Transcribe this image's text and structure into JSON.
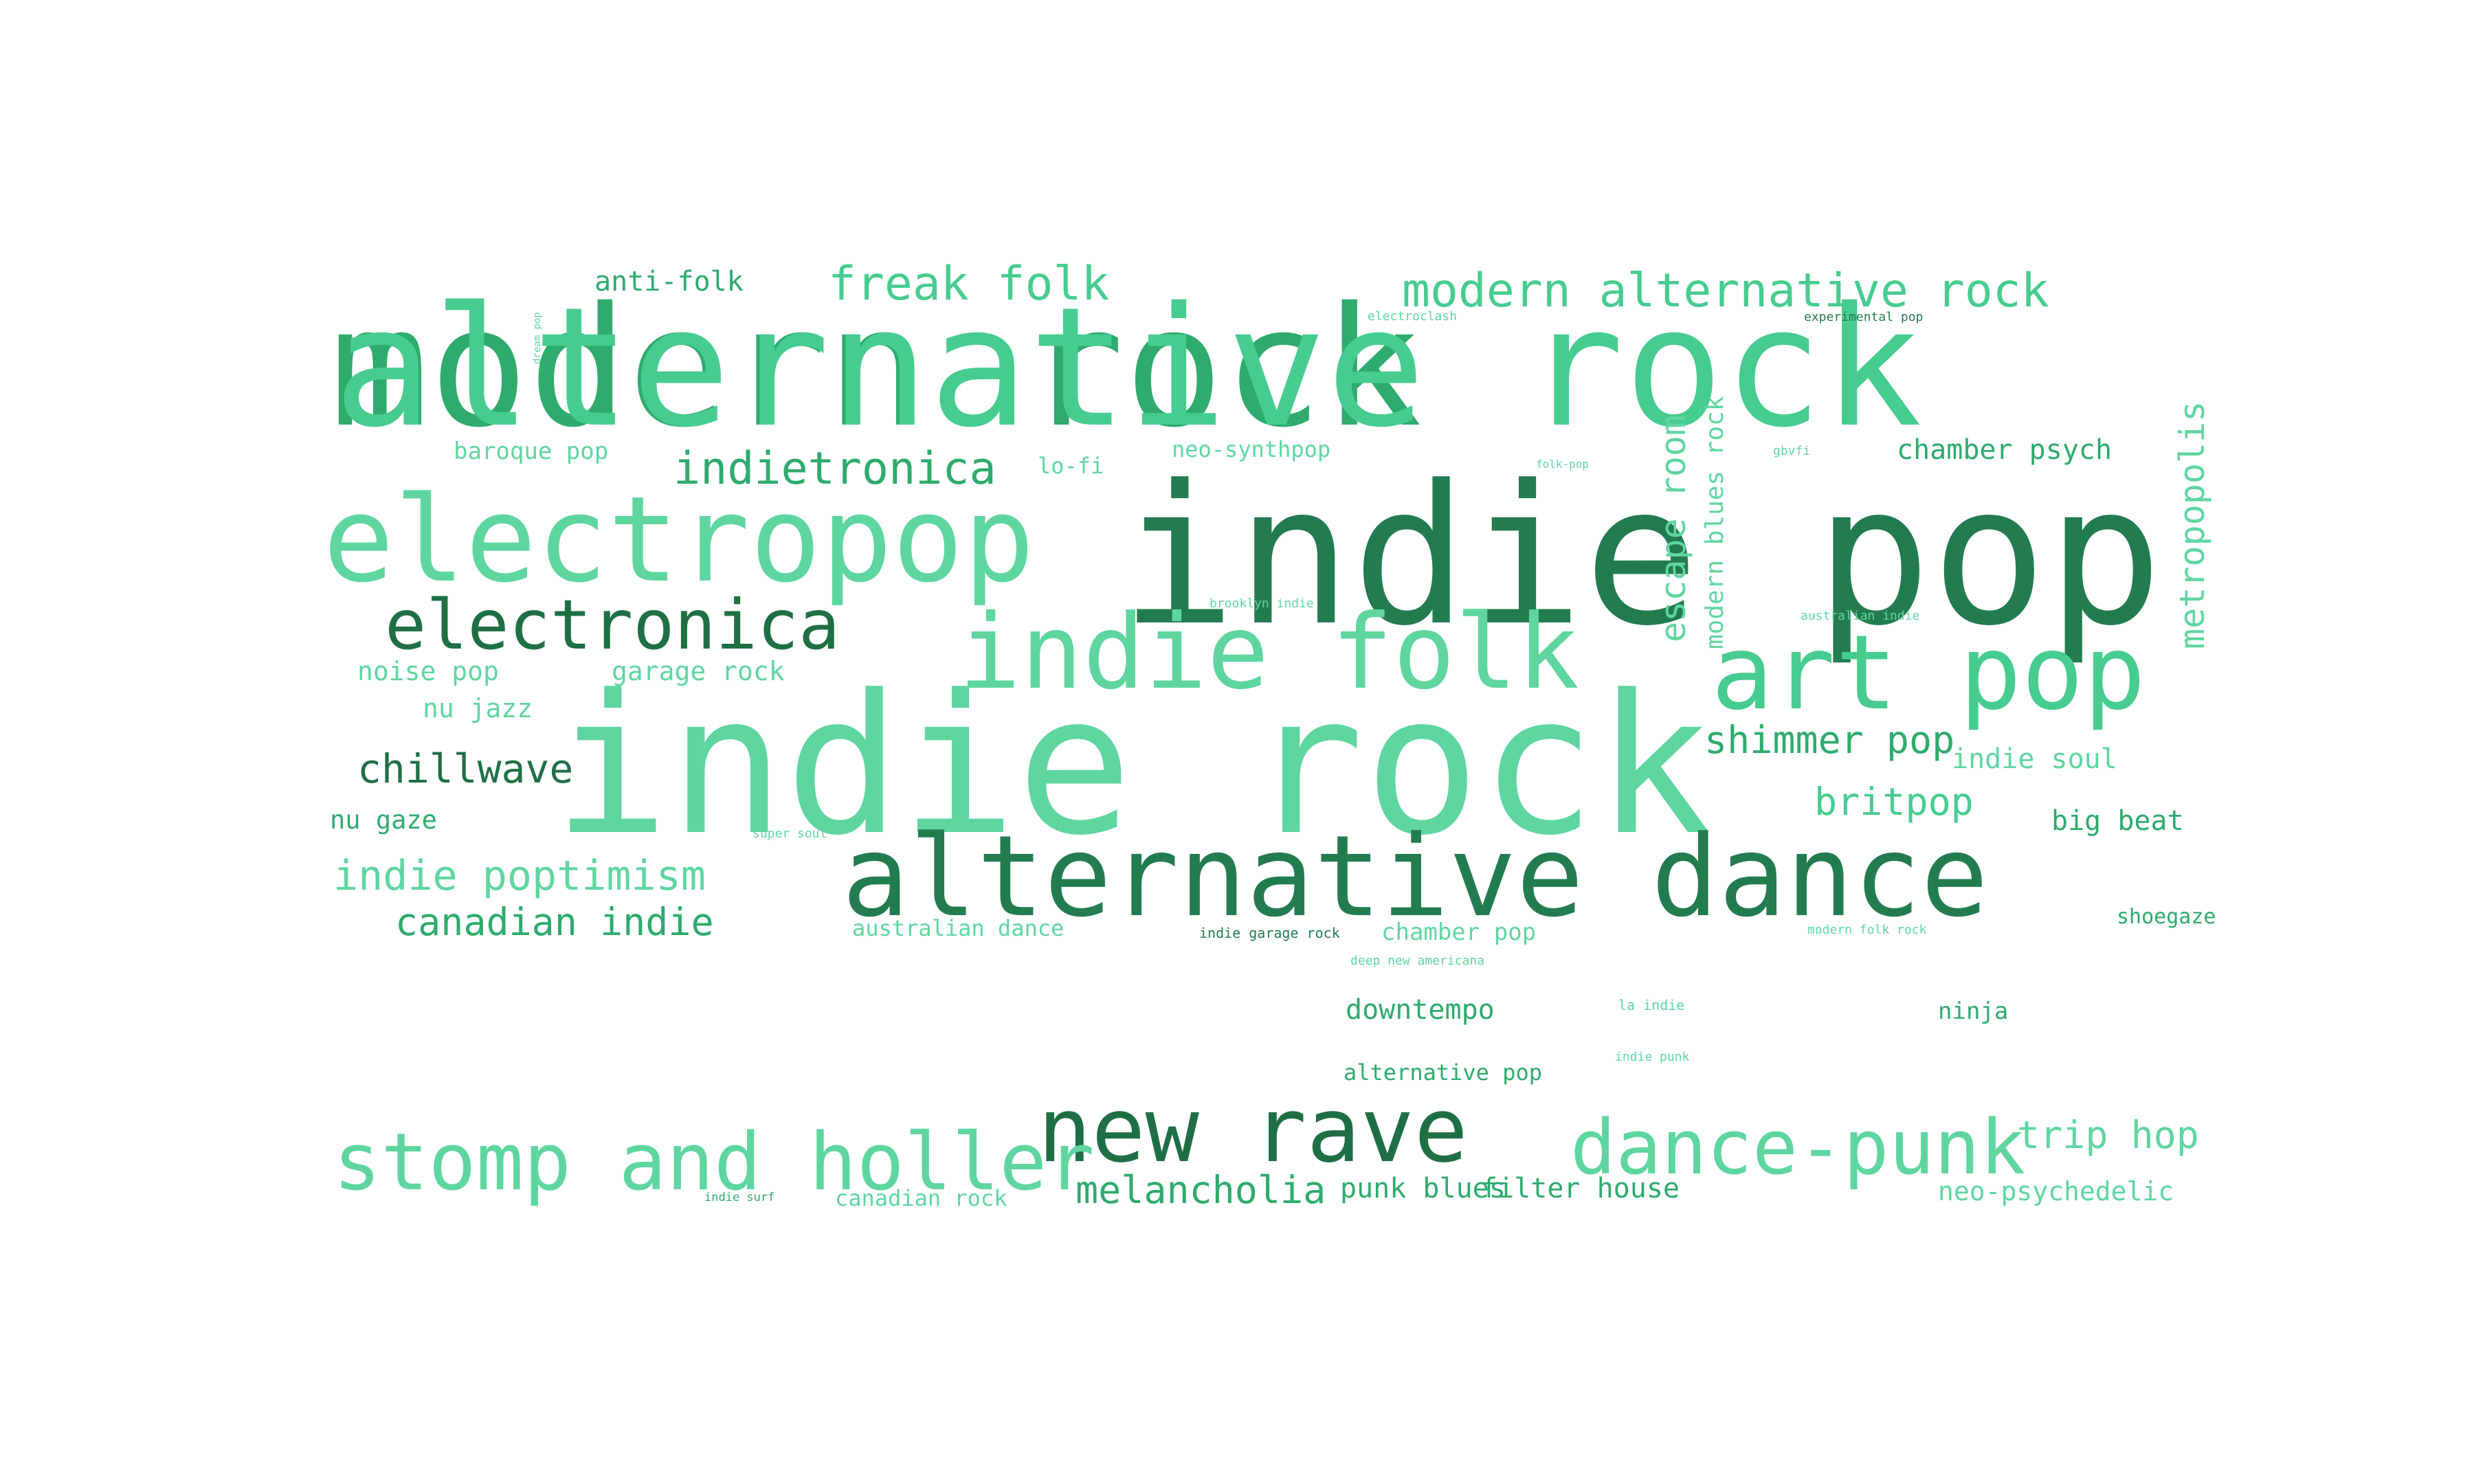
{
  "palette": {
    "light": "#5fd6a0",
    "mid": "#47cc8f",
    "green": "#2eab6d",
    "dark": "#237c4f",
    "deep": "#1f6f45"
  },
  "words": [
    {
      "text": "modern rock",
      "color": "green"
    },
    {
      "text": "alternative rock",
      "color": "mid"
    },
    {
      "text": "indie pop",
      "color": "dark"
    },
    {
      "text": "indie rock",
      "color": "light"
    },
    {
      "text": "electropop",
      "color": "light"
    },
    {
      "text": "alternative dance",
      "color": "dark"
    },
    {
      "text": "indie folk",
      "color": "light"
    },
    {
      "text": "art pop",
      "color": "mid"
    },
    {
      "text": "new rave",
      "color": "deep"
    },
    {
      "text": "electronica",
      "color": "deep"
    },
    {
      "text": "stomp and holler",
      "color": "light"
    },
    {
      "text": "dance-punk",
      "color": "light"
    },
    {
      "text": "freak folk",
      "color": "mid"
    },
    {
      "text": "modern alternative rock",
      "color": "mid"
    },
    {
      "text": "indietronica",
      "color": "green"
    },
    {
      "text": "chillwave",
      "color": "deep"
    },
    {
      "text": "indie poptimism",
      "color": "light"
    },
    {
      "text": "canadian indie",
      "color": "green"
    },
    {
      "text": "shimmer pop",
      "color": "green"
    },
    {
      "text": "britpop",
      "color": "mid"
    },
    {
      "text": "trip hop",
      "color": "light"
    },
    {
      "text": "melancholia",
      "color": "green"
    },
    {
      "text": "punk blues",
      "color": "green"
    },
    {
      "text": "filter house",
      "color": "green"
    },
    {
      "text": "neo-psychedelic",
      "color": "light"
    },
    {
      "text": "chamber psych",
      "color": "green"
    },
    {
      "text": "indie soul",
      "color": "light"
    },
    {
      "text": "big beat",
      "color": "green"
    },
    {
      "text": "anti-folk",
      "color": "green"
    },
    {
      "text": "noise pop",
      "color": "light"
    },
    {
      "text": "garage rock",
      "color": "light"
    },
    {
      "text": "nu jazz",
      "color": "light"
    },
    {
      "text": "nu gaze",
      "color": "green"
    },
    {
      "text": "escape room",
      "color": "light"
    },
    {
      "text": "modern blues rock",
      "color": "light"
    },
    {
      "text": "metropopolis",
      "color": "light"
    },
    {
      "text": "baroque pop",
      "color": "light"
    },
    {
      "text": "lo-fi",
      "color": "light"
    },
    {
      "text": "neo-synthpop",
      "color": "light"
    },
    {
      "text": "downtempo",
      "color": "green"
    },
    {
      "text": "alternative pop",
      "color": "green"
    },
    {
      "text": "chamber pop",
      "color": "light"
    },
    {
      "text": "australian dance",
      "color": "light"
    },
    {
      "text": "canadian rock",
      "color": "light"
    },
    {
      "text": "ninja",
      "color": "green"
    },
    {
      "text": "shoegaze",
      "color": "green"
    },
    {
      "text": "dream pop",
      "color": "light"
    },
    {
      "text": "electroclash",
      "color": "light"
    },
    {
      "text": "experimental pop",
      "color": "dark"
    },
    {
      "text": "folk-pop",
      "color": "light"
    },
    {
      "text": "gbvfi",
      "color": "light"
    },
    {
      "text": "brooklyn indie",
      "color": "light"
    },
    {
      "text": "australian indie",
      "color": "light"
    },
    {
      "text": "super soul",
      "color": "light"
    },
    {
      "text": "indie garage rock",
      "color": "dark"
    },
    {
      "text": "deep new americana",
      "color": "light"
    },
    {
      "text": "modern folk rock",
      "color": "light"
    },
    {
      "text": "la indie",
      "color": "light"
    },
    {
      "text": "indie punk",
      "color": "light"
    },
    {
      "text": "indie surf",
      "color": "green"
    }
  ]
}
